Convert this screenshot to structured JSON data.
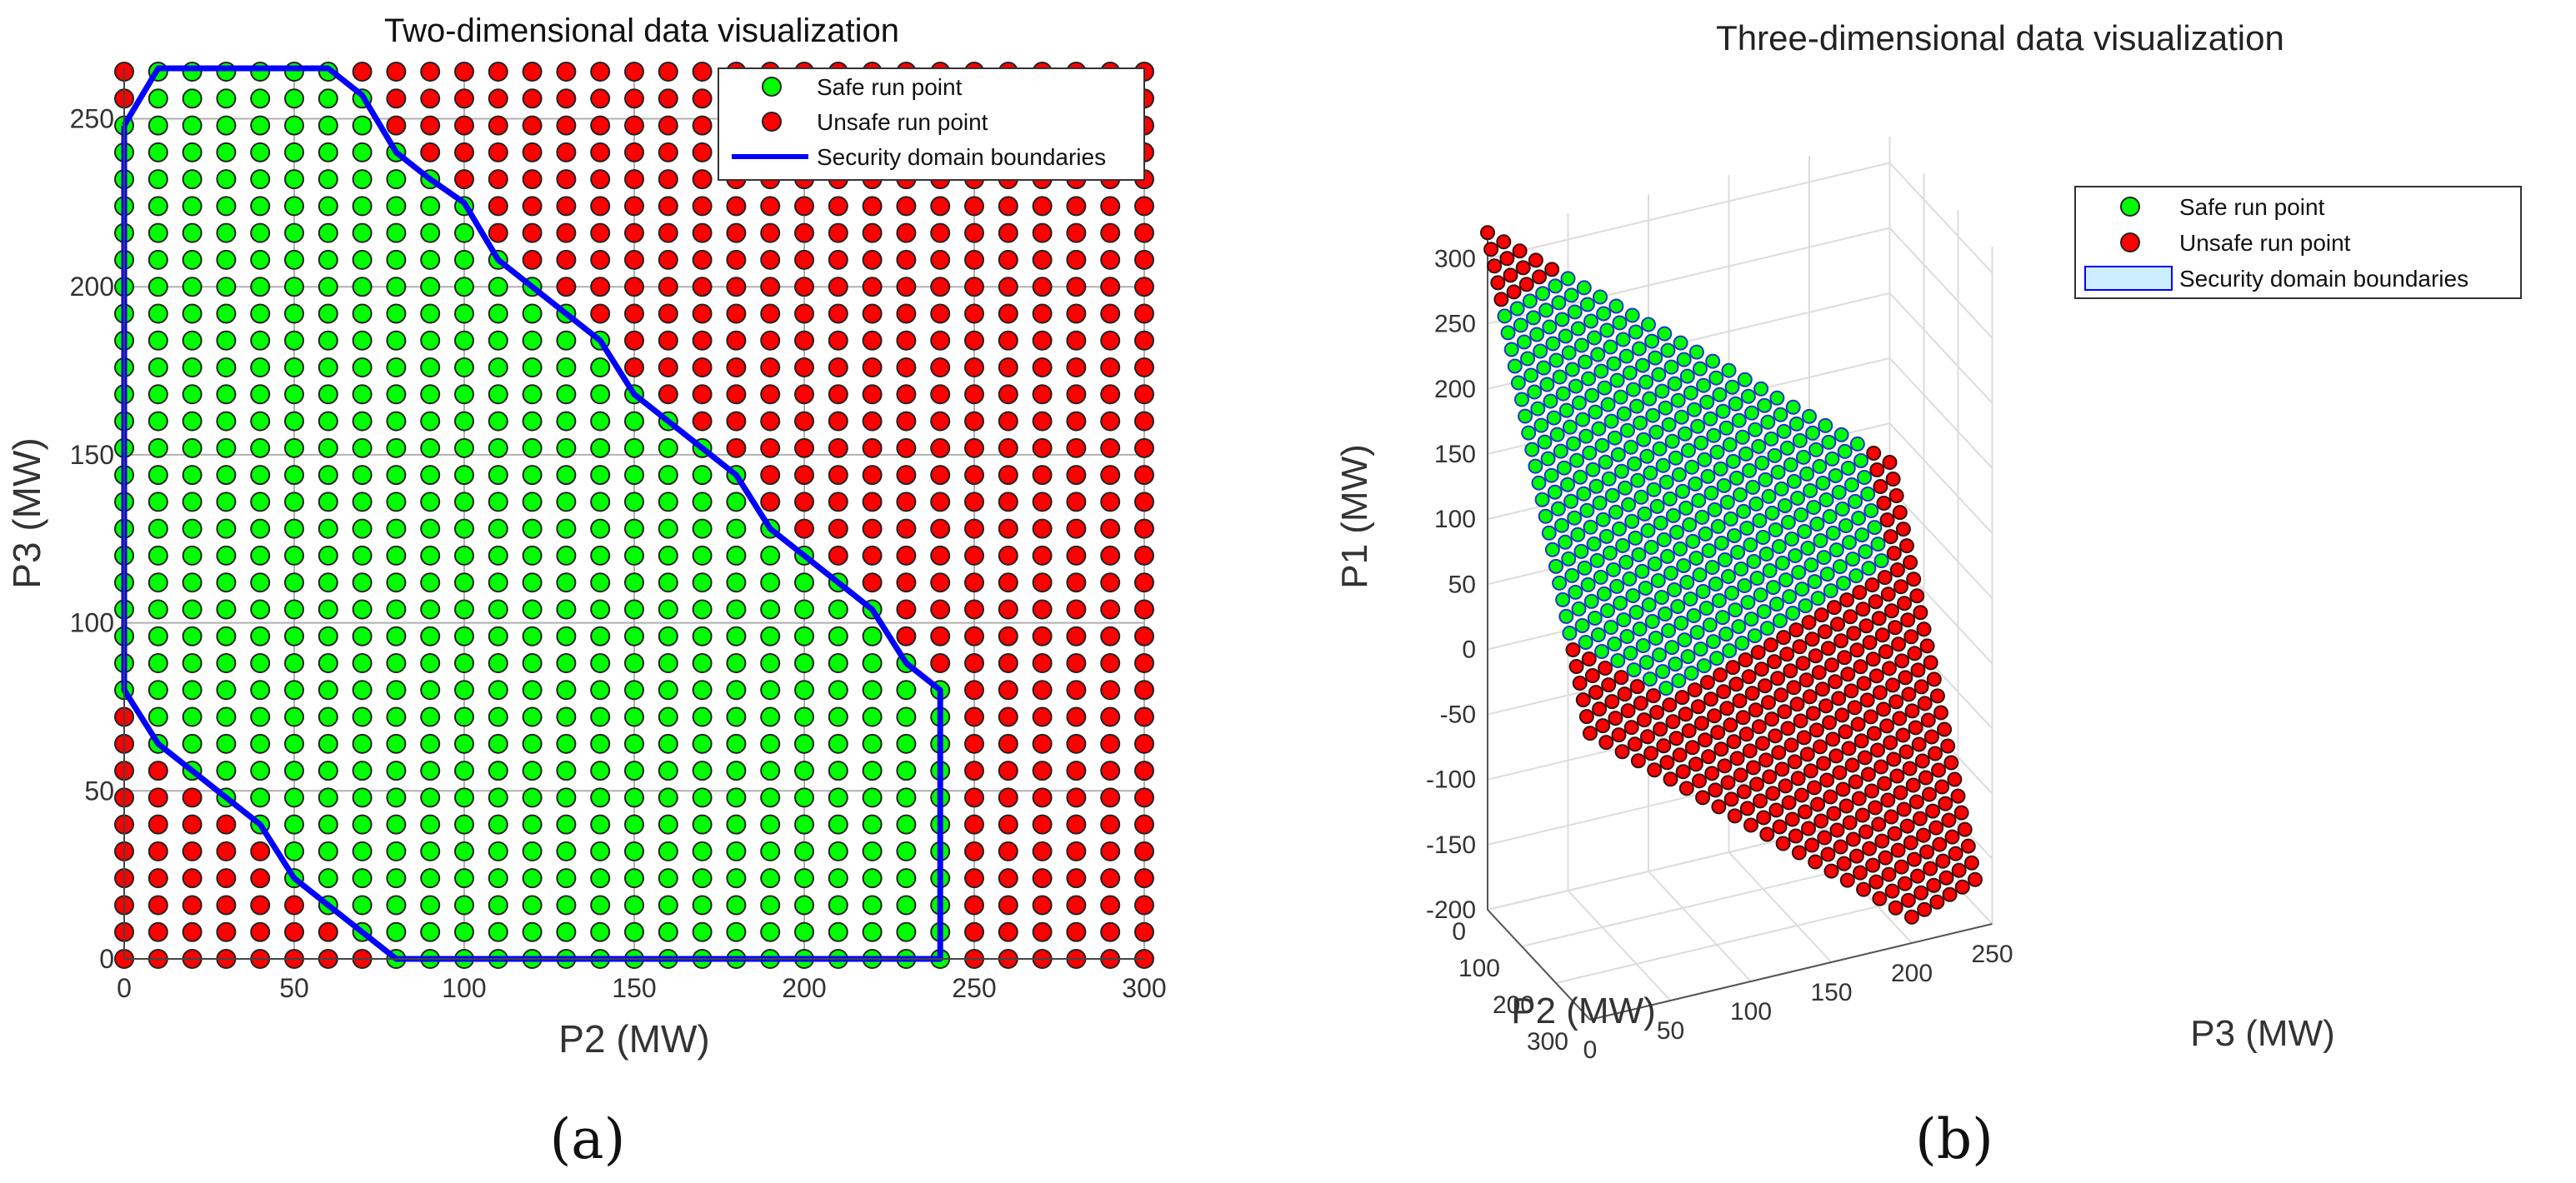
{
  "chart_data": [
    {
      "type": "scatter",
      "title": "Two-dimensional data visualization",
      "xlabel": "P2 (MW)",
      "ylabel": "P3 (MW)",
      "xlim": [
        0,
        300
      ],
      "ylim": [
        0,
        265
      ],
      "xticks": [
        0,
        50,
        100,
        150,
        200,
        250,
        300
      ],
      "yticks": [
        0,
        50,
        100,
        150,
        200,
        250
      ],
      "grid": true,
      "grid_x_step": 10,
      "grid_y_step": 8,
      "legend_position": "top-right",
      "legend": [
        "Safe run point",
        "Unsafe run point",
        "Security domain boundaries"
      ],
      "series": [
        {
          "name": "Safe run point",
          "color": "#00ff00",
          "rule": "grid points inside boundary polygon"
        },
        {
          "name": "Unsafe run point",
          "color": "#ff0000",
          "rule": "grid points outside boundary polygon"
        },
        {
          "name": "Security domain boundaries",
          "color": "#0000ff",
          "boundary": [
            [
              0,
              248
            ],
            [
              10,
              265
            ],
            [
              60,
              265
            ],
            [
              70,
              257
            ],
            [
              80,
              240
            ],
            [
              90,
              232
            ],
            [
              100,
              225
            ],
            [
              110,
              208
            ],
            [
              120,
              200
            ],
            [
              130,
              192
            ],
            [
              140,
              184
            ],
            [
              150,
              168
            ],
            [
              160,
              160
            ],
            [
              170,
              152
            ],
            [
              180,
              144
            ],
            [
              190,
              128
            ],
            [
              200,
              120
            ],
            [
              210,
              112
            ],
            [
              220,
              104
            ],
            [
              230,
              88
            ],
            [
              240,
              80
            ],
            [
              240,
              0
            ],
            [
              80,
              0
            ],
            [
              70,
              8
            ],
            [
              60,
              16
            ],
            [
              50,
              24
            ],
            [
              40,
              40
            ],
            [
              30,
              48
            ],
            [
              20,
              56
            ],
            [
              10,
              64
            ],
            [
              0,
              80
            ],
            [
              0,
              248
            ]
          ]
        }
      ],
      "panel_label": "(a)"
    },
    {
      "type": "scatter",
      "title": "Three-dimensional data visualization",
      "xlabel": "P2 (MW)",
      "ylabel": "P3 (MW)",
      "zlabel": "P1 (MW)",
      "x_ticks": [
        0,
        100,
        200,
        300
      ],
      "y_ticks": [
        0,
        50,
        100,
        150,
        200,
        250
      ],
      "z_ticks": [
        300,
        250,
        200,
        150,
        100,
        50,
        0,
        -50,
        -100,
        -150,
        -200
      ],
      "zlim": [
        -200,
        320
      ],
      "relation": "P1 = 320 - P2 - P3",
      "legend_position": "top-right",
      "legend": [
        "Safe run point",
        "Unsafe run point",
        "Security domain boundaries"
      ],
      "series": [
        {
          "name": "Safe run point",
          "color": "#00ff00"
        },
        {
          "name": "Unsafe run point",
          "color": "#ff0000"
        },
        {
          "name": "Security domain boundaries",
          "color": "#cdeeff"
        }
      ],
      "panel_label": "(b)"
    }
  ]
}
